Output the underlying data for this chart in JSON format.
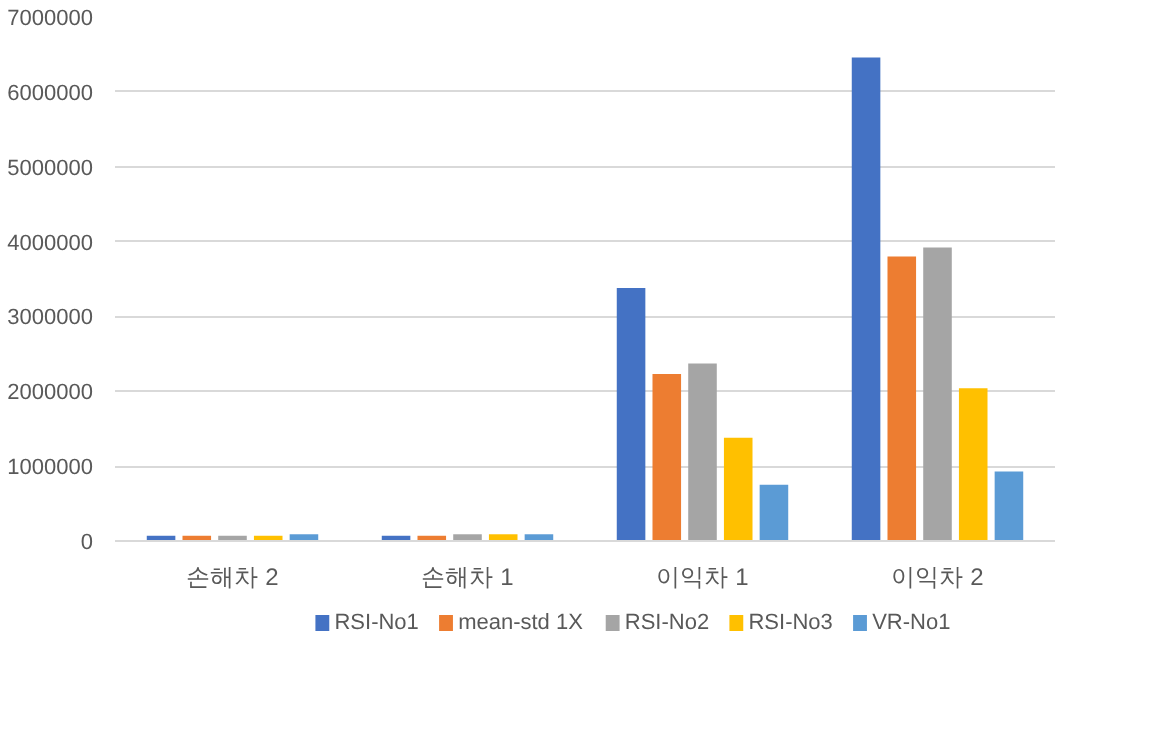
{
  "chart_data": {
    "type": "bar",
    "categories": [
      "손해차 2",
      "손해차 1",
      "이익차 1",
      "이익차 2"
    ],
    "series": [
      {
        "name": "RSI-No1",
        "color": "#4472c4",
        "values": [
          70000,
          70000,
          3380000,
          6460000
        ]
      },
      {
        "name": "mean-std 1X",
        "color": "#ed7d31",
        "values": [
          70000,
          70000,
          2230000,
          3800000
        ]
      },
      {
        "name": "RSI-No2",
        "color": "#a5a5a5",
        "values": [
          70000,
          90000,
          2370000,
          3920000
        ]
      },
      {
        "name": "RSI-No3",
        "color": "#ffc000",
        "values": [
          70000,
          90000,
          1380000,
          2040000
        ]
      },
      {
        "name": "VR-No1",
        "color": "#5b9bd5",
        "values": [
          90000,
          90000,
          750000,
          930000
        ]
      }
    ],
    "ylim": [
      0,
      7000000
    ],
    "yticks": [
      0,
      1000000,
      2000000,
      3000000,
      4000000,
      5000000,
      6000000,
      7000000
    ],
    "grid": "y",
    "legend": "bottom"
  }
}
